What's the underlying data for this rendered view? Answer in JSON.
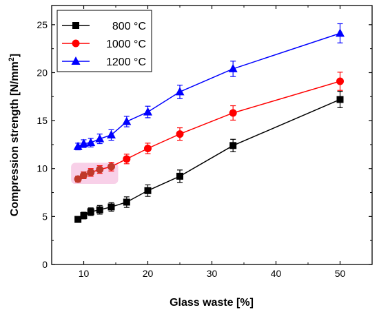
{
  "chart_data": {
    "type": "line",
    "xlabel": "Glass waste [%]",
    "ylabel": "Compression strength [N/mm",
    "ylabel_sup": "2",
    "ylabel_end": "]",
    "xlim": [
      5,
      55
    ],
    "ylim": [
      0,
      27
    ],
    "xticks": [
      10,
      20,
      30,
      40,
      50
    ],
    "yticks": [
      0,
      5,
      10,
      15,
      20,
      25
    ],
    "error_bars": true,
    "legend_position": "top-left",
    "x": [
      9.1,
      10.0,
      11.1,
      12.5,
      14.3,
      16.7,
      20.0,
      25.0,
      33.3,
      50.0
    ],
    "series": [
      {
        "name": "800 °C",
        "color": "#000000",
        "marker": "square",
        "values": [
          4.7,
          5.1,
          5.5,
          5.7,
          6.0,
          6.5,
          7.7,
          9.2,
          12.4,
          17.2
        ],
        "errors": [
          0.3,
          0.35,
          0.4,
          0.45,
          0.45,
          0.55,
          0.6,
          0.65,
          0.65,
          0.85
        ]
      },
      {
        "name": "1000 °C",
        "color": "#ff0000",
        "marker": "circle",
        "values": [
          8.9,
          9.3,
          9.6,
          9.9,
          10.2,
          11.0,
          12.1,
          13.6,
          15.8,
          19.1
        ],
        "errors": [
          0.3,
          0.35,
          0.4,
          0.4,
          0.45,
          0.5,
          0.55,
          0.65,
          0.75,
          0.95
        ]
      },
      {
        "name": "1200 °C",
        "color": "#0000ff",
        "marker": "triangle",
        "values": [
          12.3,
          12.6,
          12.7,
          13.1,
          13.5,
          14.9,
          15.9,
          18.0,
          20.4,
          24.1
        ],
        "errors": [
          0.35,
          0.4,
          0.45,
          0.5,
          0.55,
          0.55,
          0.6,
          0.7,
          0.8,
          1.0
        ]
      }
    ]
  },
  "colors": {
    "highlight": "#f7c8e4"
  }
}
